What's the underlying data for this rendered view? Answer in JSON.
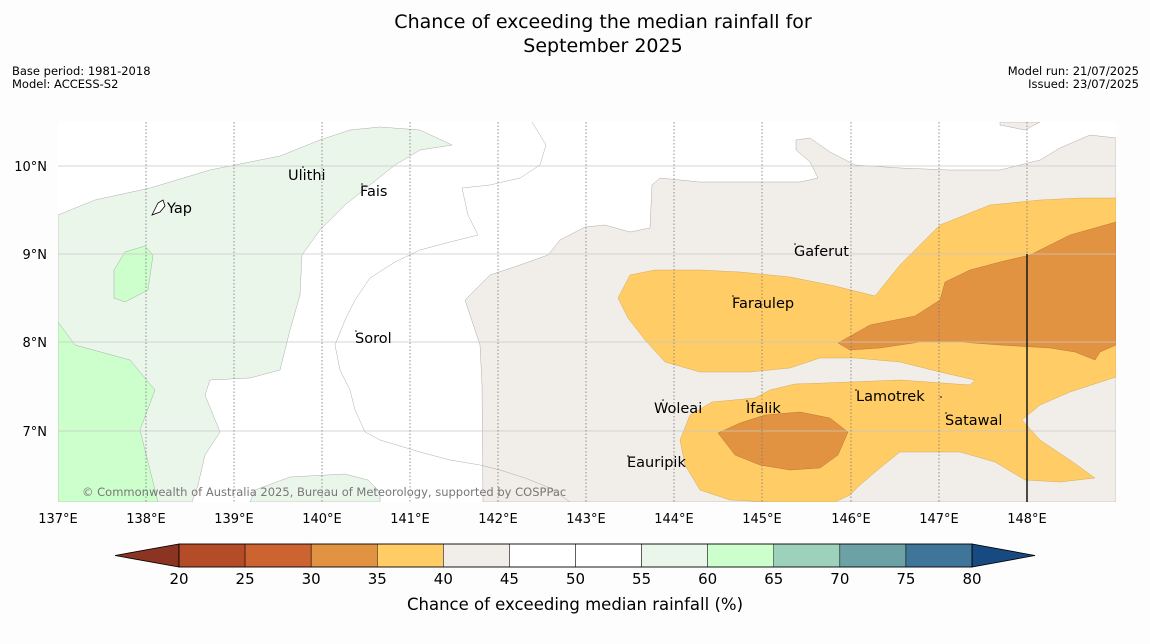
{
  "title_line1": "Chance of exceeding the median rainfall for",
  "title_line2": "September 2025",
  "base_period": "Base period: 1981-2018",
  "model": "Model: ACCESS-S2",
  "model_run": "Model run: 21/07/2025",
  "issued": "Issued: 23/07/2025",
  "copyright": "© Commonwealth of Australia 2025, Bureau of Meteorology, supported by COSPPac",
  "lat_labels": [
    "10°N",
    "9°N",
    "8°N",
    "7°N"
  ],
  "lon_labels": [
    "137°E",
    "138°E",
    "139°E",
    "140°E",
    "141°E",
    "142°E",
    "143°E",
    "144°E",
    "145°E",
    "146°E",
    "147°E",
    "148°E"
  ],
  "places": [
    "Ulithi",
    "Fais",
    "Yap",
    "Gaferut",
    "Faraulep",
    "Sorol",
    "Lamotrek",
    "Woleai",
    "Ifalik",
    "Satawal",
    "Eauripik"
  ],
  "colorbar": {
    "ticks": [
      "20",
      "25",
      "30",
      "35",
      "40",
      "45",
      "50",
      "55",
      "60",
      "65",
      "70",
      "75",
      "80"
    ],
    "colors": [
      "#b44c28",
      "#cc6330",
      "#e19342",
      "#ffcc66",
      "#f1ede8",
      "#ffffff",
      "#ffffff",
      "#ebf6eb",
      "#ccffcc",
      "#9dd1bb",
      "#6ca2a5",
      "#40759a"
    ],
    "under_color": "#8a3421",
    "over_color": "#174a80",
    "label": "Chance of exceeding median rainfall (%)"
  }
}
